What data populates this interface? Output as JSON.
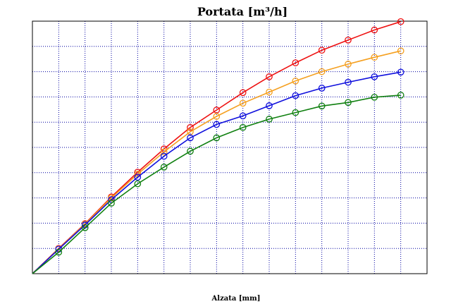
{
  "chart_data": {
    "type": "line",
    "title": "Portata [m³/h]",
    "xlabel": "Alzata [mm]",
    "ylabel": "",
    "xlim": [
      0,
      15
    ],
    "ylim": [
      0,
      10
    ],
    "grid": true,
    "x": [
      0,
      1,
      2,
      3,
      4,
      5,
      6,
      7,
      8,
      9,
      10,
      11,
      12,
      13,
      14
    ],
    "series": [
      {
        "color": "#ee1111",
        "values": [
          0,
          1.0,
          1.98,
          3.04,
          4.02,
          4.94,
          5.79,
          6.48,
          7.17,
          7.8,
          8.35,
          8.85,
          9.25,
          9.65,
          9.98
        ]
      },
      {
        "color": "#f5a020",
        "values": [
          0,
          0.98,
          1.96,
          3.0,
          3.94,
          4.82,
          5.62,
          6.23,
          6.75,
          7.19,
          7.63,
          8.0,
          8.3,
          8.57,
          8.82
        ]
      },
      {
        "color": "#1010dd",
        "values": [
          0,
          0.97,
          1.93,
          2.93,
          3.82,
          4.65,
          5.38,
          5.91,
          6.25,
          6.65,
          7.05,
          7.35,
          7.58,
          7.8,
          7.98
        ]
      },
      {
        "color": "#108010",
        "values": [
          0,
          0.85,
          1.82,
          2.79,
          3.56,
          4.22,
          4.85,
          5.38,
          5.79,
          6.12,
          6.38,
          6.64,
          6.78,
          6.99,
          7.07
        ]
      }
    ]
  }
}
